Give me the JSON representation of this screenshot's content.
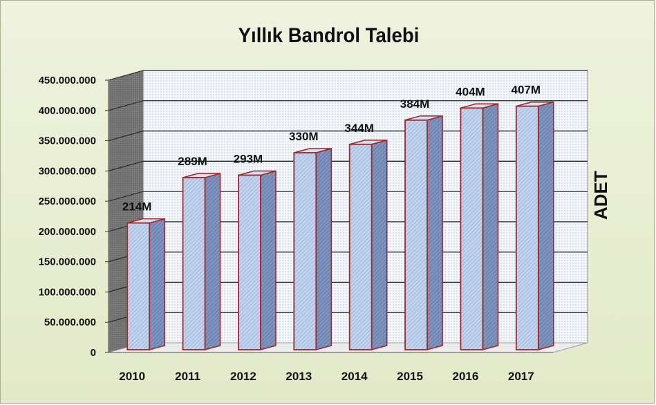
{
  "chart_data": {
    "type": "bar",
    "title": "Yıllık Bandrol Talebi",
    "ylabel": "ADET",
    "xlabel": "",
    "categories": [
      "2010",
      "2011",
      "2012",
      "2013",
      "2014",
      "2015",
      "2016",
      "2017"
    ],
    "values": [
      214000000,
      289000000,
      293000000,
      330000000,
      344000000,
      384000000,
      404000000,
      407000000
    ],
    "data_labels": [
      "214M",
      "289M",
      "293M",
      "330M",
      "344M",
      "384M",
      "404M",
      "407M"
    ],
    "ylim": [
      0,
      450000000
    ],
    "yticks": [
      "0",
      "50.000.000",
      "100.000.000",
      "150.000.000",
      "200.000.000",
      "250.000.000",
      "300.000.000",
      "350.000.000",
      "400.000.000",
      "450.000.000"
    ],
    "grid": true,
    "legend": "none",
    "colors": {
      "bar_face": "#b7cbe8",
      "bar_edge": "#9e2a2a",
      "bar_side": "#6f86b3",
      "wall": "#f7f9fc",
      "side_wall": "#8a8a8a"
    }
  }
}
